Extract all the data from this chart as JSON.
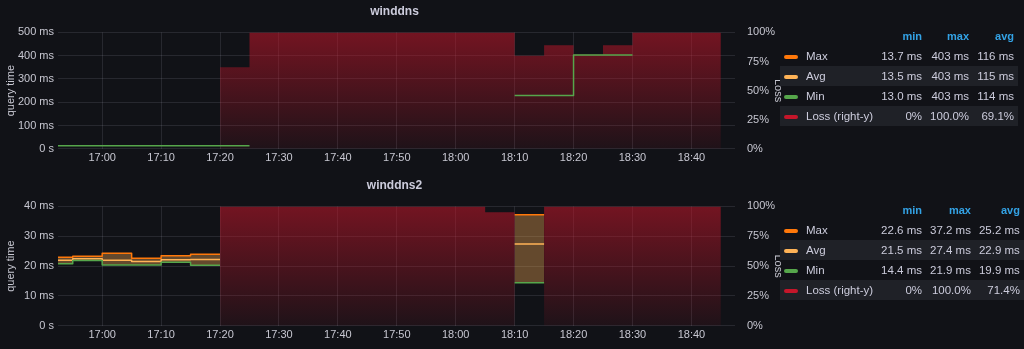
{
  "chart_data": [
    {
      "type": "step",
      "title": "winddns",
      "ylabel": "query time",
      "y2label": "Loss",
      "legend": "right",
      "grid": true,
      "marker": "none",
      "x": [
        16.875,
        16.9167,
        17.0,
        17.0833,
        17.1667,
        17.25,
        17.3333,
        17.4167,
        17.5,
        17.5833,
        17.6667,
        17.75,
        17.8333,
        17.9167,
        18.0,
        18.0833,
        18.1667,
        18.25,
        18.3333,
        18.4167,
        18.5,
        18.5833,
        18.6667,
        18.75
      ],
      "xlim": [
        16.875,
        18.79
      ],
      "xticks": [
        {
          "value": 17.0,
          "label": "17:00"
        },
        {
          "value": 17.1667,
          "label": "17:10"
        },
        {
          "value": 17.3333,
          "label": "17:20"
        },
        {
          "value": 17.5,
          "label": "17:30"
        },
        {
          "value": 17.6667,
          "label": "17:40"
        },
        {
          "value": 17.8333,
          "label": "17:50"
        },
        {
          "value": 18.0,
          "label": "18:00"
        },
        {
          "value": 18.1667,
          "label": "18:10"
        },
        {
          "value": 18.3333,
          "label": "18:20"
        },
        {
          "value": 18.5,
          "label": "18:30"
        },
        {
          "value": 18.6667,
          "label": "18:40"
        }
      ],
      "ylim": [
        0,
        500
      ],
      "yticks": [
        {
          "value": 0,
          "label": "0 s"
        },
        {
          "value": 100,
          "label": "100 ms"
        },
        {
          "value": 200,
          "label": "200 ms"
        },
        {
          "value": 300,
          "label": "300 ms"
        },
        {
          "value": 400,
          "label": "400 ms"
        },
        {
          "value": 500,
          "label": "500 ms"
        }
      ],
      "y2lim": [
        0,
        100
      ],
      "y2ticks": [
        {
          "value": 0,
          "label": "0%"
        },
        {
          "value": 25,
          "label": "25%"
        },
        {
          "value": 50,
          "label": "50%"
        },
        {
          "value": 75,
          "label": "75%"
        },
        {
          "value": 100,
          "label": "100%"
        }
      ],
      "series": [
        {
          "name": "Max",
          "color": "#ff780a",
          "values": [
            null,
            null,
            null,
            null,
            null,
            null,
            null,
            null,
            null,
            null,
            null,
            null,
            null,
            null,
            null,
            null,
            null,
            null,
            null,
            null,
            null,
            null,
            null,
            null
          ]
        },
        {
          "name": "Avg",
          "color": "#ffb357",
          "values": [
            null,
            null,
            null,
            null,
            null,
            null,
            null,
            null,
            null,
            null,
            null,
            null,
            null,
            null,
            null,
            null,
            null,
            null,
            null,
            null,
            null,
            null,
            null,
            null
          ]
        },
        {
          "name": "Min",
          "color": "#56a64b",
          "values": [
            13,
            13,
            13,
            13,
            13,
            13,
            13,
            13,
            null,
            null,
            null,
            null,
            null,
            null,
            null,
            null,
            229,
            229,
            403,
            403,
            403,
            null,
            null,
            null
          ]
        },
        {
          "name": "Loss (right-y)",
          "type": "area",
          "axis": "y2",
          "color": "#c4162a",
          "values": [
            0,
            0,
            0,
            0,
            0,
            0,
            70,
            100,
            100,
            100,
            100,
            100,
            100,
            100,
            100,
            100,
            80,
            89,
            81,
            89,
            100,
            100,
            100,
            100
          ]
        }
      ],
      "annotations": [
        "min",
        "max",
        "avg",
        "13.7 ms",
        "403 ms",
        "116 ms",
        "13.5 ms",
        "403 ms",
        "115 ms",
        "13.0 ms",
        "403 ms",
        "114 ms",
        "0%",
        "100.0%",
        "69.1%"
      ]
    },
    {
      "type": "step",
      "title": "winddns2",
      "ylabel": "query time",
      "y2label": "Loss",
      "legend": "right",
      "grid": true,
      "marker": "none",
      "x": [
        16.875,
        16.9167,
        17.0,
        17.0833,
        17.1667,
        17.25,
        17.3333,
        17.4167,
        17.5,
        17.5833,
        17.6667,
        17.75,
        17.8333,
        17.9167,
        18.0,
        18.0833,
        18.1667,
        18.25,
        18.3333,
        18.4167,
        18.5,
        18.5833,
        18.6667,
        18.75
      ],
      "xlim": [
        16.875,
        18.79
      ],
      "xticks": [
        {
          "value": 17.0,
          "label": "17:00"
        },
        {
          "value": 17.1667,
          "label": "17:10"
        },
        {
          "value": 17.3333,
          "label": "17:20"
        },
        {
          "value": 17.5,
          "label": "17:30"
        },
        {
          "value": 17.6667,
          "label": "17:40"
        },
        {
          "value": 17.8333,
          "label": "17:50"
        },
        {
          "value": 18.0,
          "label": "18:00"
        },
        {
          "value": 18.1667,
          "label": "18:10"
        },
        {
          "value": 18.3333,
          "label": "18:20"
        },
        {
          "value": 18.5,
          "label": "18:30"
        },
        {
          "value": 18.6667,
          "label": "18:40"
        }
      ],
      "ylim": [
        0,
        40
      ],
      "yticks": [
        {
          "value": 0,
          "label": "0 s"
        },
        {
          "value": 10,
          "label": "10 ms"
        },
        {
          "value": 20,
          "label": "20 ms"
        },
        {
          "value": 30,
          "label": "30 ms"
        },
        {
          "value": 40,
          "label": "40 ms"
        }
      ],
      "y2lim": [
        0,
        100
      ],
      "y2ticks": [
        {
          "value": 0,
          "label": "0%"
        },
        {
          "value": 25,
          "label": "25%"
        },
        {
          "value": 50,
          "label": "50%"
        },
        {
          "value": 75,
          "label": "75%"
        },
        {
          "value": 100,
          "label": "100%"
        }
      ],
      "series": [
        {
          "name": "Max",
          "color": "#ff780a",
          "values": [
            23.0,
            23.3,
            24.3,
            22.6,
            23.5,
            24.0,
            24.0,
            null,
            null,
            null,
            null,
            null,
            null,
            null,
            null,
            null,
            37.2,
            37.2,
            null,
            null,
            null,
            null,
            null,
            null
          ]
        },
        {
          "name": "Avg",
          "color": "#ffb357",
          "values": [
            22.0,
            22.5,
            22.0,
            21.5,
            22.1,
            22.2,
            22.2,
            null,
            null,
            null,
            null,
            null,
            null,
            null,
            null,
            null,
            27.4,
            27.4,
            null,
            null,
            null,
            null,
            null,
            null
          ],
          "lower": [
            20.8,
            21.9,
            20.4,
            20.4,
            21.3,
            20.3,
            20.3,
            null,
            null,
            null,
            null,
            null,
            null,
            null,
            null,
            null,
            14.4,
            14.4,
            null,
            null,
            null,
            null,
            null,
            null
          ],
          "upper": [
            23.0,
            23.3,
            24.3,
            22.6,
            23.5,
            24.0,
            24.0,
            null,
            null,
            null,
            null,
            null,
            null,
            null,
            null,
            null,
            37.2,
            37.2,
            null,
            null,
            null,
            null,
            null,
            null
          ]
        },
        {
          "name": "Min",
          "color": "#56a64b",
          "values": [
            20.8,
            21.9,
            20.4,
            20.4,
            21.3,
            20.3,
            20.3,
            null,
            null,
            null,
            null,
            null,
            null,
            null,
            null,
            null,
            14.4,
            14.4,
            null,
            null,
            null,
            null,
            null,
            null
          ]
        },
        {
          "name": "Loss (right-y)",
          "type": "area",
          "axis": "y2",
          "color": "#c4162a",
          "values": [
            0,
            0,
            0,
            0,
            0,
            0,
            100,
            100,
            100,
            100,
            100,
            100,
            100,
            100,
            100,
            95,
            0,
            100,
            100,
            100,
            100,
            100,
            100,
            100
          ]
        }
      ],
      "annotations": [
        "min",
        "max",
        "avg",
        "22.6 ms",
        "37.2 ms",
        "25.2 ms",
        "21.5 ms",
        "27.4 ms",
        "22.9 ms",
        "14.4 ms",
        "21.9 ms",
        "19.9 ms",
        "0%",
        "100.0%",
        "71.4%"
      ]
    }
  ]
}
